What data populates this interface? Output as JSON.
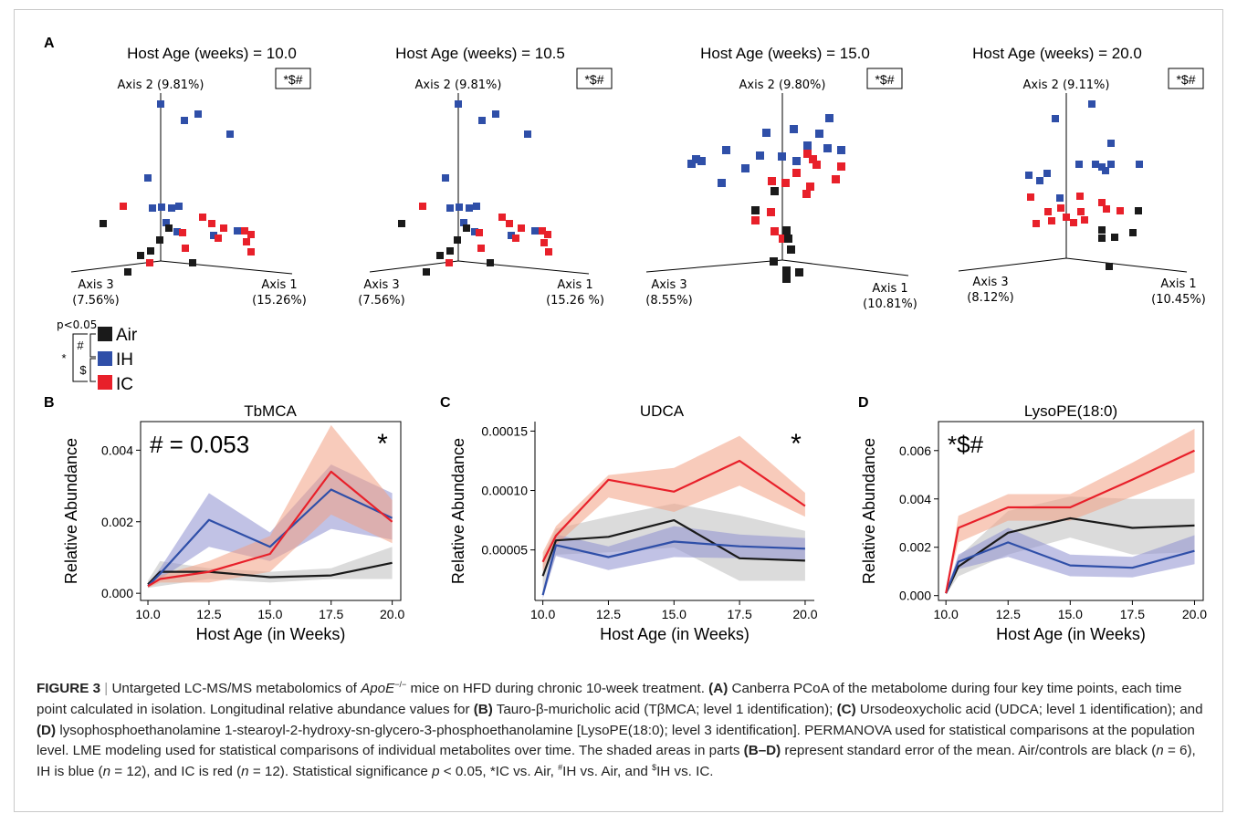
{
  "panel_letters": {
    "A": "A",
    "B": "B",
    "C": "C",
    "D": "D"
  },
  "pcoa": [
    {
      "title": "Host Age (weeks) = 10.0",
      "sig": "*$#",
      "axis1": "Axis 1",
      "axis1_pct": "(15.26%)",
      "axis2": "Axis 2 (9.81%)",
      "axis3": "Axis 3",
      "axis3_pct": "(7.56%)"
    },
    {
      "title": "Host Age (weeks) = 10.5",
      "sig": "*$#",
      "axis1": "Axis 1",
      "axis1_pct": "(15.26 %)",
      "axis2": "Axis 2 (9.81%)",
      "axis3": "Axis 3",
      "axis3_pct": "(7.56%)"
    },
    {
      "title": "Host Age (weeks) = 15.0",
      "sig": "*$#",
      "axis1": "Axis 1",
      "axis1_pct": "(10.81%)",
      "axis2": "Axis 2 (9.80%)",
      "axis3": "Axis 3",
      "axis3_pct": "(8.55%)"
    },
    {
      "title": "Host Age (weeks) = 20.0",
      "sig": "*$#",
      "axis1": "Axis 1",
      "axis1_pct": "(10.45%)",
      "axis2": "Axis 2 (9.11%)",
      "axis3": "Axis 3",
      "axis3_pct": "(8.12%)"
    }
  ],
  "legend": {
    "p_label": "p<0.05",
    "items": [
      {
        "label": "Air",
        "color": "#1a1a1a"
      },
      {
        "label": "IH",
        "color": "#2f4fa8"
      },
      {
        "label": "IC",
        "color": "#e8202a"
      }
    ],
    "bracket_symbols": {
      "star": "*",
      "hash": "#",
      "dollar": "$"
    }
  },
  "colors": {
    "air": "#1a1a1a",
    "ih": "#2f4fa8",
    "ic": "#e8202a",
    "air_band": "#bdbdbd",
    "ih_band": "#8e8fd0",
    "ic_band": "#f2a183"
  },
  "chart_data": [
    {
      "type": "line",
      "panel": "B",
      "title": "TbMCA",
      "xlabel": "Host Age (in Weeks)",
      "ylabel": "Relative Abundance",
      "x": [
        10.0,
        10.5,
        12.5,
        15.0,
        17.5,
        20.0
      ],
      "xticks": [
        10.0,
        12.5,
        15.0,
        17.5,
        20.0
      ],
      "xtick_labels": [
        "10.0",
        "12.5",
        "15.0",
        "17.5",
        "20.0"
      ],
      "yticks": [
        0,
        0.002,
        0.004
      ],
      "ytick_labels": [
        "0.000",
        "0.002",
        "0.004"
      ],
      "xlim": [
        9.7,
        20.35
      ],
      "ylim": [
        -0.0002,
        0.0048
      ],
      "framed": true,
      "annotation_left": "# = 0.053",
      "annotation_right": "*",
      "series": [
        {
          "name": "Air",
          "color": "#1a1a1a",
          "band": "#bdbdbd",
          "values": [
            0.00025,
            0.0006,
            0.0006,
            0.00045,
            0.0005,
            0.00085
          ],
          "lower": [
            0.00015,
            0.0002,
            0.0004,
            0.0003,
            0.0004,
            0.0004
          ],
          "upper": [
            0.00035,
            0.0009,
            0.0007,
            0.0006,
            0.0007,
            0.0013
          ]
        },
        {
          "name": "IH",
          "color": "#2f4fa8",
          "band": "#8e8fd0",
          "values": [
            0.0002,
            0.00055,
            0.00205,
            0.0013,
            0.0029,
            0.0021
          ],
          "lower": [
            0.00015,
            0.0004,
            0.0013,
            0.0009,
            0.0018,
            0.0015
          ],
          "upper": [
            0.00025,
            0.0007,
            0.0028,
            0.0017,
            0.0036,
            0.0028
          ]
        },
        {
          "name": "IC",
          "color": "#e8202a",
          "band": "#f2a183",
          "values": [
            0.0002,
            0.0004,
            0.0006,
            0.0011,
            0.0034,
            0.002
          ],
          "lower": [
            0.00015,
            0.0003,
            0.0003,
            0.0006,
            0.0022,
            0.0014
          ],
          "upper": [
            0.00025,
            0.0005,
            0.0009,
            0.0016,
            0.0047,
            0.0026
          ]
        }
      ]
    },
    {
      "type": "line",
      "panel": "C",
      "title": "UDCA",
      "xlabel": "Host Age (in Weeks)",
      "ylabel": "Relative Abundance",
      "x": [
        10.0,
        10.5,
        12.5,
        15.0,
        17.5,
        20.0
      ],
      "xticks": [
        10.0,
        12.5,
        15.0,
        17.5,
        20.0
      ],
      "xtick_labels": [
        "10.0",
        "12.5",
        "15.0",
        "17.5",
        "20.0"
      ],
      "yticks": [
        5e-05,
        0.0001,
        0.00015
      ],
      "ytick_labels": [
        "0.00005",
        "0.00010",
        "0.00015"
      ],
      "xlim": [
        9.7,
        20.35
      ],
      "ylim": [
        7.5e-06,
        0.000158
      ],
      "framed": false,
      "annotation_left": "",
      "annotation_right": "*",
      "series": [
        {
          "name": "Air",
          "color": "#1a1a1a",
          "band": "#bdbdbd",
          "values": [
            2.8e-05,
            5.8e-05,
            6.1e-05,
            7.5e-05,
            4.3e-05,
            4.1e-05
          ],
          "lower": [
            1.2e-05,
            4.6e-05,
            4.8e-05,
            5.2e-05,
            2.4e-05,
            2.4e-05
          ],
          "upper": [
            4.4e-05,
            6.8e-05,
            7.8e-05,
            8.9e-05,
            7.9e-05,
            6.6e-05
          ]
        },
        {
          "name": "IH",
          "color": "#2f4fa8",
          "band": "#8e8fd0",
          "values": [
            1.2e-05,
            5.4e-05,
            4.4e-05,
            5.7e-05,
            5.3e-05,
            5.1e-05
          ],
          "lower": [
            9e-06,
            4.5e-05,
            3.3e-05,
            4.4e-05,
            4.3e-05,
            4.2e-05
          ],
          "upper": [
            1.5e-05,
            6.3e-05,
            5.3e-05,
            7e-05,
            6.3e-05,
            6e-05
          ]
        },
        {
          "name": "IC",
          "color": "#e8202a",
          "band": "#f2a183",
          "values": [
            4e-05,
            6.2e-05,
            0.000109,
            9.9e-05,
            0.000125,
            8.7e-05
          ],
          "lower": [
            3.2e-05,
            5.4e-05,
            9.4e-05,
            8.2e-05,
            0.000104,
            7.8e-05
          ],
          "upper": [
            4.8e-05,
            7e-05,
            0.000113,
            0.000119,
            0.000146,
            9.8e-05
          ]
        }
      ]
    },
    {
      "type": "line",
      "panel": "D",
      "title": "LysoPE(18:0)",
      "xlabel": "Host Age (in Weeks)",
      "ylabel": "Relative Abundance",
      "x": [
        10.0,
        10.5,
        12.5,
        15.0,
        17.5,
        20.0
      ],
      "xticks": [
        10.0,
        12.5,
        15.0,
        17.5,
        20.0
      ],
      "xtick_labels": [
        "10.0",
        "12.5",
        "15.0",
        "17.5",
        "20.0"
      ],
      "yticks": [
        0,
        0.002,
        0.004,
        0.006
      ],
      "ytick_labels": [
        "0.000",
        "0.002",
        "0.004",
        "0.006"
      ],
      "xlim": [
        9.7,
        20.35
      ],
      "ylim": [
        -0.0002,
        0.0072
      ],
      "framed": true,
      "annotation_left": "*$#",
      "annotation_right": "",
      "series": [
        {
          "name": "Air",
          "color": "#1a1a1a",
          "band": "#bdbdbd",
          "values": [
            0.0001,
            0.0012,
            0.0026,
            0.0032,
            0.0028,
            0.0029
          ],
          "lower": [
            5e-05,
            0.0008,
            0.0017,
            0.0024,
            0.0017,
            0.0018
          ],
          "upper": [
            0.00015,
            0.0016,
            0.0035,
            0.0041,
            0.004,
            0.004
          ]
        },
        {
          "name": "IH",
          "color": "#2f4fa8",
          "band": "#8e8fd0",
          "values": [
            0.0001,
            0.0014,
            0.0022,
            0.00125,
            0.00115,
            0.00185
          ],
          "lower": [
            5e-05,
            0.0011,
            0.0016,
            0.0008,
            0.00075,
            0.0013
          ],
          "upper": [
            0.00015,
            0.0017,
            0.0028,
            0.0017,
            0.0016,
            0.0025
          ]
        },
        {
          "name": "IC",
          "color": "#e8202a",
          "band": "#f2a183",
          "values": [
            0.0001,
            0.0028,
            0.00365,
            0.00365,
            0.0048,
            0.006
          ],
          "lower": [
            5e-05,
            0.0022,
            0.0031,
            0.0031,
            0.0041,
            0.0051
          ],
          "upper": [
            0.00015,
            0.0033,
            0.0042,
            0.0042,
            0.0055,
            0.0069
          ]
        }
      ]
    }
  ],
  "caption": {
    "fig_label": "FIGURE 3",
    "sep": "|",
    "p1": "Untargeted LC-MS/MS metabolomics of ",
    "apoe": "ApoE",
    "apoe_sup": "−/−",
    "p2": " mice on HFD during chronic 10-week treatment. ",
    "a": "(A)",
    "p3": " Canberra PCoA of the metabolome during four key time points, each time point calculated in isolation. Longitudinal relative abundance values for ",
    "b": "(B)",
    "p4": " Tauro-β-muricholic acid (TβMCA; level 1 identification); ",
    "c": "(C)",
    "p5": " Ursodeoxycholic acid (UDCA; level 1 identification); and ",
    "d": "(D)",
    "p6": " lysophosphoethanolamine 1-stearoyl-2-hydroxy-sn-glycero-3-phosphoethanolamine [LysoPE(18:0); level 3 identification]. PERMANOVA used for statistical comparisons at the population level. LME modeling used for statistical comparisons of individual metabolites over time. The shaded areas in parts ",
    "bd": "(B–D)",
    "p7": " represent standard error of the mean. Air/controls are black (",
    "n1": "n",
    "p8": " = 6), IH is blue (",
    "n2": "n",
    "p9": " = 12), and IC is red (",
    "n3": "n",
    "p10": " = 12). Statistical significance ",
    "pvar": "p",
    "p11": " < 0.05, *IC vs. Air, ",
    "hash": "#",
    "p12": "IH vs. Air, and ",
    "dollar": "$",
    "p13": "IH vs. IC."
  }
}
